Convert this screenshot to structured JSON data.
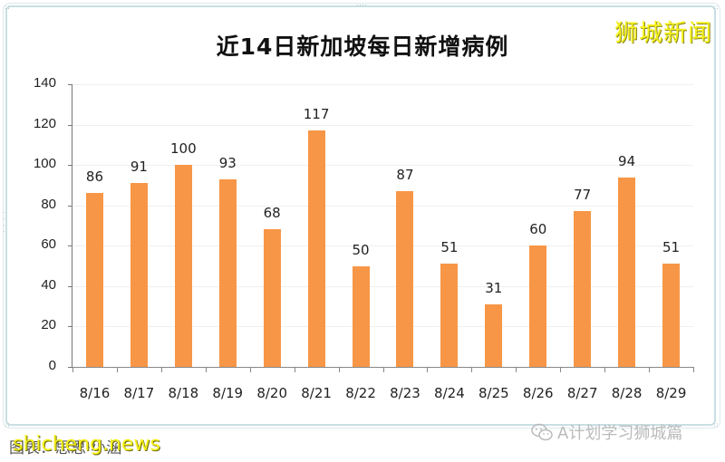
{
  "chart_data": {
    "type": "bar",
    "title": "近14日新加坡每日新增病例",
    "xlabel": "",
    "ylabel": "",
    "categories": [
      "8/16",
      "8/17",
      "8/18",
      "8/19",
      "8/20",
      "8/21",
      "8/22",
      "8/23",
      "8/24",
      "8/25",
      "8/26",
      "8/27",
      "8/28",
      "8/29"
    ],
    "values": [
      86,
      91,
      100,
      93,
      68,
      117,
      50,
      87,
      51,
      31,
      60,
      77,
      94,
      51
    ],
    "ylim": [
      0,
      140
    ],
    "yticks": [
      0,
      20,
      40,
      60,
      80,
      100,
      120,
      140
    ],
    "grid": true,
    "legend": null,
    "bar_color": "#f79646",
    "data_labels": true
  },
  "watermarks": {
    "top_right": "狮城新闻",
    "bottom_left_overlay": "shicheng.news",
    "bottom_left_caption": "图表：思思·小涵",
    "bottom_right": "A计划学习狮城篇"
  },
  "colors": {
    "bar": "#f79646",
    "frame_border": "#c9dfe3",
    "watermark_yellow": "#f5f01a"
  }
}
